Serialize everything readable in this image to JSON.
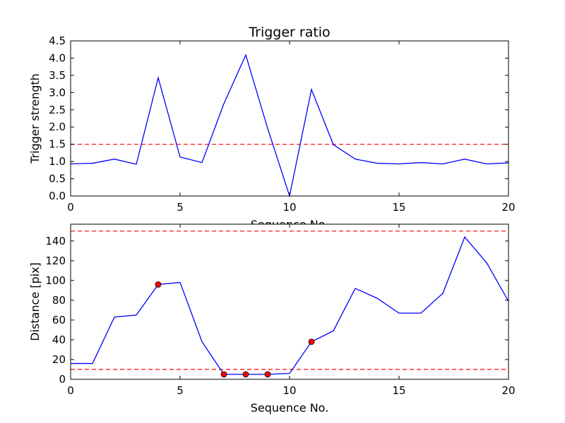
{
  "chart_data": [
    {
      "type": "line",
      "title": "Trigger ratio",
      "xlabel": "Sequence No.",
      "ylabel": "Trigger strength",
      "xlim": [
        0,
        20
      ],
      "ylim": [
        0,
        4.5
      ],
      "xticks": [
        0,
        5,
        10,
        15,
        20
      ],
      "yticks": [
        0.0,
        0.5,
        1.0,
        1.5,
        2.0,
        2.5,
        3.0,
        3.5,
        4.0,
        4.5
      ],
      "xtick_labels": [
        "0",
        "5",
        "10",
        "15",
        "20"
      ],
      "ytick_labels": [
        "0.0",
        "0.5",
        "1.0",
        "1.5",
        "2.0",
        "2.5",
        "3.0",
        "3.5",
        "4.0",
        "4.5"
      ],
      "grid": false,
      "series": [
        {
          "color": "#0000ff",
          "x": [
            0,
            1,
            2,
            3,
            4,
            5,
            6,
            7,
            8,
            9,
            10,
            11,
            12,
            13,
            14,
            15,
            16,
            17,
            18,
            19,
            20
          ],
          "y": [
            0.93,
            0.95,
            1.07,
            0.92,
            3.43,
            1.13,
            0.97,
            2.68,
            4.09,
            1.96,
            0.0,
            3.09,
            1.49,
            1.07,
            0.95,
            0.93,
            0.97,
            0.93,
            1.07,
            0.93,
            0.96
          ]
        }
      ],
      "hlines": [
        {
          "y": 1.5,
          "color": "#ff0000",
          "style": "dashed"
        }
      ]
    },
    {
      "type": "line",
      "title": "",
      "xlabel": "Sequence No.",
      "ylabel": "Distance [pix]",
      "xlim": [
        0,
        20
      ],
      "ylim": [
        0,
        157
      ],
      "xticks": [
        0,
        5,
        10,
        15,
        20
      ],
      "yticks": [
        0,
        20,
        40,
        60,
        80,
        100,
        120,
        140
      ],
      "xtick_labels": [
        "0",
        "5",
        "10",
        "15",
        "20"
      ],
      "ytick_labels": [
        "0",
        "20",
        "40",
        "60",
        "80",
        "100",
        "120",
        "140"
      ],
      "grid": false,
      "series": [
        {
          "color": "#0000ff",
          "x": [
            0,
            1,
            2,
            3,
            4,
            5,
            6,
            7,
            8,
            9,
            10,
            11,
            12,
            13,
            14,
            15,
            16,
            17,
            18,
            19,
            20
          ],
          "y": [
            16,
            16,
            63,
            65,
            96,
            98,
            38,
            5,
            5,
            5,
            6,
            38,
            49,
            92,
            82,
            67,
            67,
            87,
            144,
            118,
            79
          ]
        }
      ],
      "markers": {
        "color": "#ff0000",
        "points": [
          {
            "x": 4,
            "y": 96
          },
          {
            "x": 7,
            "y": 5
          },
          {
            "x": 8,
            "y": 5
          },
          {
            "x": 9,
            "y": 5
          },
          {
            "x": 11,
            "y": 38
          }
        ]
      },
      "hlines": [
        {
          "y": 150,
          "color": "#ff0000",
          "style": "dashed"
        },
        {
          "y": 10,
          "color": "#ff0000",
          "style": "dashed"
        }
      ]
    }
  ]
}
